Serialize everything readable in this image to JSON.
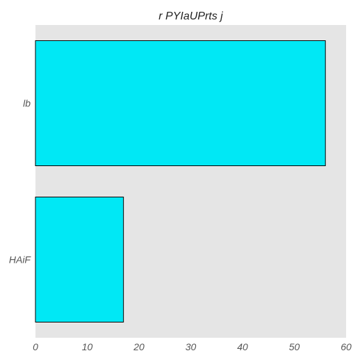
{
  "chart_data": {
    "type": "bar",
    "orientation": "horizontal",
    "title": "r  PYIaUPrts j",
    "xlabel": "",
    "ylabel": "",
    "categories": [
      "HAiF",
      "lb"
    ],
    "values": [
      17,
      56
    ],
    "xlim": [
      0,
      60
    ],
    "xticks": [
      0,
      10,
      20,
      30,
      40,
      50,
      60
    ],
    "grid": false,
    "legend": "none",
    "colors": {
      "bar_fill": "#00E8F5",
      "bar_edge": "#000000",
      "plot_background": "#E5E5E5",
      "page_background": "#FFFFFF",
      "text": "#555555",
      "title": "#222222"
    }
  }
}
